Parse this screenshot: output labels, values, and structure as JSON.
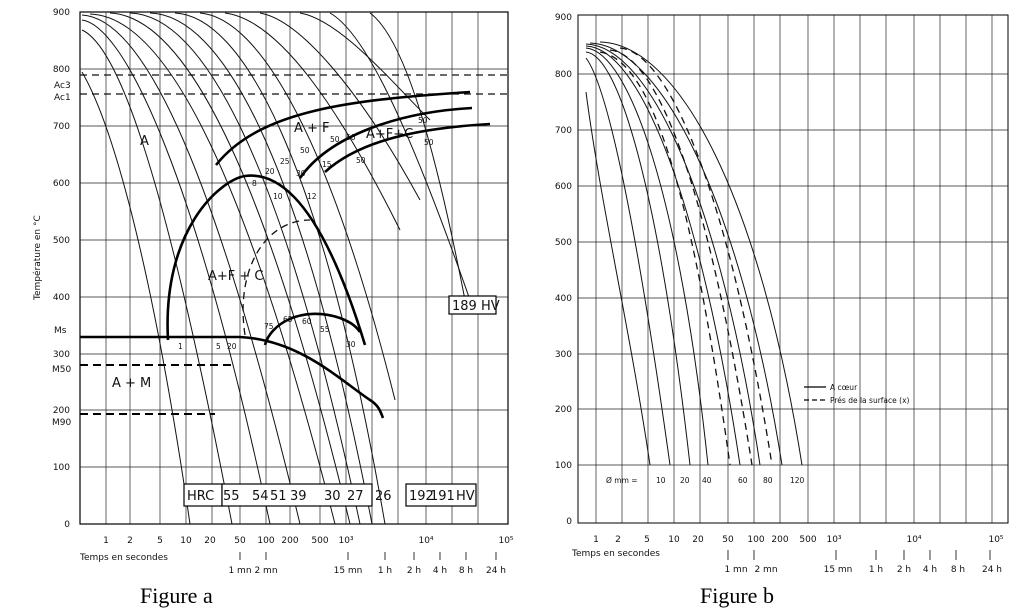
{
  "figure_a": {
    "caption": "Figure a",
    "y_axis_label": "Température en °C",
    "y_ticks": [
      "900",
      "800",
      "700",
      "600",
      "500",
      "400",
      "300",
      "200",
      "100",
      "0"
    ],
    "critical_labels": {
      "ac3": "Ac3",
      "ac1": "Ac1",
      "ms": "Ms",
      "m50": "M50",
      "m90": "M90"
    },
    "x_ticks": [
      "1",
      "2",
      "5",
      "10",
      "20",
      "50",
      "100",
      "200",
      "500",
      "10³",
      "10⁴",
      "10⁵"
    ],
    "x_axis_label": "Temps en secondes",
    "time_ticks": [
      "1 mn",
      "2 mn",
      "15 mn",
      "1 h",
      "2 h",
      "4 h",
      "8 h",
      "24 h"
    ],
    "phase_labels": {
      "a": "A",
      "af": "A + F",
      "afc": "A+F+C",
      "afc_mid": "A+F + C",
      "am": "A + M"
    },
    "numbers": [
      "50",
      "50",
      "50",
      "50",
      "50",
      "20",
      "25",
      "30",
      "15",
      "8",
      "10",
      "12",
      "50",
      "1",
      "5",
      "20",
      "75",
      "65",
      "60",
      "55",
      "30"
    ],
    "hv_box": "189 HV",
    "hardness_row": [
      "HRC",
      "55",
      "54",
      "51",
      "39",
      "30",
      "27",
      "26",
      "192",
      "191",
      "HV"
    ]
  },
  "figure_b": {
    "caption": "Figure b",
    "y_ticks": [
      "900",
      "800",
      "700",
      "600",
      "500",
      "400",
      "300",
      "200",
      "100",
      "0"
    ],
    "x_ticks": [
      "1",
      "2",
      "5",
      "10",
      "20",
      "50",
      "100",
      "200",
      "500",
      "10³",
      "10⁴",
      "10⁵"
    ],
    "x_axis_label": "Temps en secondes",
    "time_ticks": [
      "1 mn",
      "2 mn",
      "15 mn",
      "1 h",
      "2 h",
      "4 h",
      "8 h",
      "24 h"
    ],
    "legend": [
      {
        "style": "solid",
        "label": "A cœur"
      },
      {
        "style": "dashed",
        "label": "Prés de la surface (x)"
      }
    ],
    "diam_label": "Ø mm =",
    "diameters": [
      "10",
      "20",
      "40",
      "60",
      "80",
      "120"
    ]
  }
}
